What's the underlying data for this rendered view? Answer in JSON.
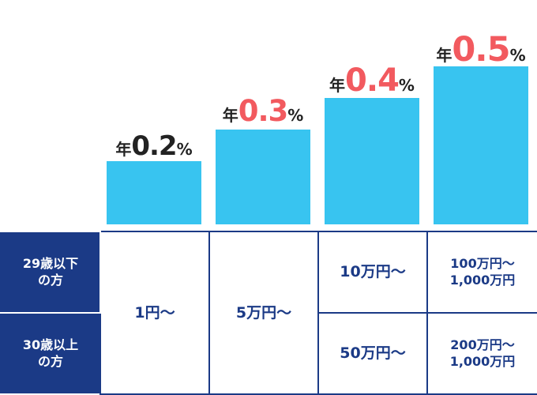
{
  "chart_data": {
    "type": "bar",
    "categories": [
      "1円〜",
      "5万円〜",
      "10万円〜",
      "100万円〜"
    ],
    "values": [
      0.2,
      0.3,
      0.4,
      0.5
    ],
    "label_prefix": "年",
    "label_suffix": "%",
    "value_texts": [
      "0.2",
      "0.3",
      "0.4",
      "0.5"
    ],
    "highlight": [
      false,
      true,
      true,
      true
    ],
    "colors": {
      "bar": "#38c4f0",
      "highlight_value": "#f25a5f",
      "normal_value": "#222222"
    }
  },
  "table": {
    "rows": [
      {
        "header": [
          "29歳以下",
          "の方"
        ],
        "tiers": [
          [
            "1円〜"
          ],
          [
            "5万円〜"
          ],
          [
            "10万円〜"
          ],
          [
            "100万円〜",
            "1,000万円"
          ]
        ]
      },
      {
        "header": [
          "30歳以上",
          "の方"
        ],
        "tiers": [
          [
            "50万円〜"
          ],
          [
            "200万円〜",
            "1,000万円"
          ]
        ]
      }
    ],
    "colors": {
      "navy": "#1b3a86"
    }
  }
}
